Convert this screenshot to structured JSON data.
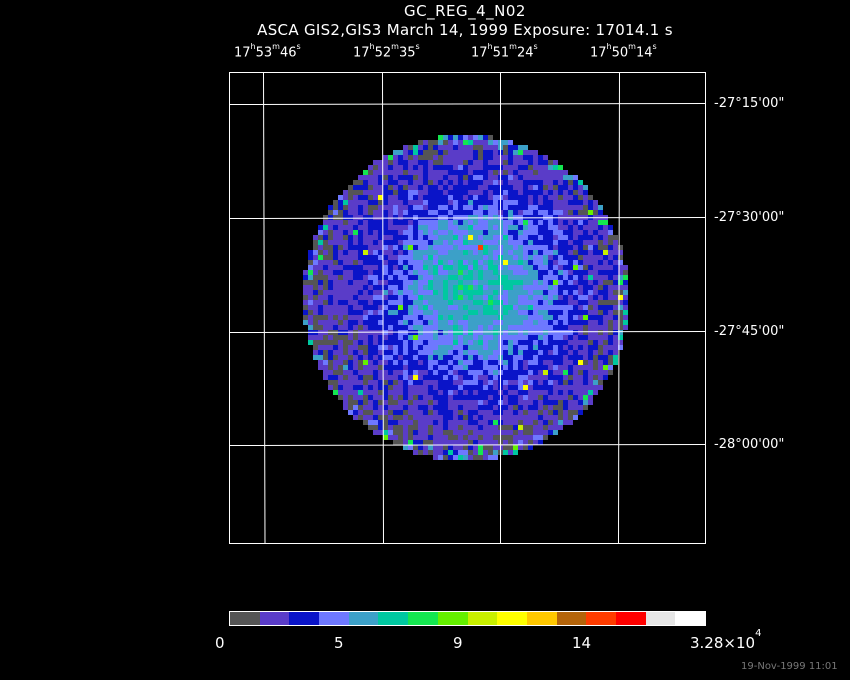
{
  "title": "GC_REG_4_N02",
  "subtitle": "ASCA GIS2,GIS3 March 14, 1999 Exposure: 17014.1 s",
  "ra_labels": [
    {
      "h": "17",
      "m": "53",
      "s": "46"
    },
    {
      "h": "17",
      "m": "52",
      "s": "35"
    },
    {
      "h": "17",
      "m": "51",
      "s": "24"
    },
    {
      "h": "17",
      "m": "50",
      "s": "14"
    }
  ],
  "dec_labels": [
    "-27°15'00\"",
    "-27°30'00\"",
    "-27°45'00\"",
    "-28°00'00\""
  ],
  "colorbar": {
    "colors": [
      "#555555",
      "#5a3cc8",
      "#0a14c8",
      "#6e78ff",
      "#3ca0c8",
      "#00c8a0",
      "#14e650",
      "#64f000",
      "#c8f000",
      "#ffff00",
      "#ffc800",
      "#b4640a",
      "#ff3c00",
      "#ff0000",
      "#e6e6e6",
      "#ffffff"
    ],
    "labels": [
      "0",
      "5",
      "9",
      "14"
    ],
    "max_label_base": "3.28×10",
    "max_label_exp": "4"
  },
  "timestamp": "19-Nov-1999 11:01",
  "image_palette": [
    "#555555",
    "#5a3cc8",
    "#0a14c8",
    "#6e78ff",
    "#3ca0c8",
    "#00c8a0",
    "#14e650",
    "#64f000",
    "#c8f000",
    "#ffff00",
    "#ffc800",
    "#ff3c00",
    "#ff0000",
    "#ffffff"
  ]
}
